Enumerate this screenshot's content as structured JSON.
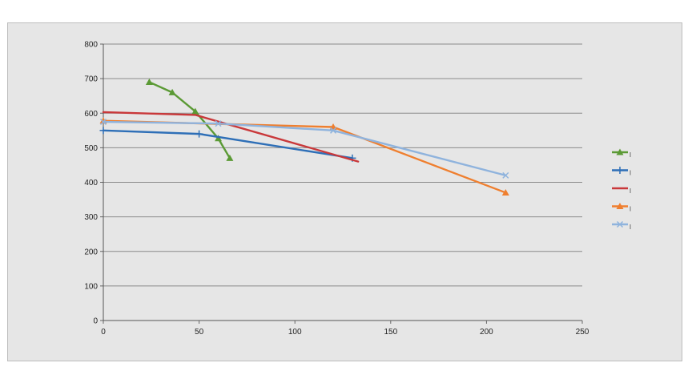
{
  "chart_data": {
    "type": "line",
    "xlim": [
      0,
      250
    ],
    "ylim": [
      0,
      800
    ],
    "x_ticks": [
      "0",
      "50",
      "100",
      "150",
      "200",
      "250"
    ],
    "y_ticks": [
      "0",
      "100",
      "200",
      "300",
      "400",
      "500",
      "600",
      "700",
      "800"
    ],
    "grid": "horizontal",
    "legend_placement": "right",
    "series": [
      {
        "color": "#5b9a35",
        "marker": "triangle",
        "points": [
          [
            24,
            690
          ],
          [
            36,
            660
          ],
          [
            48,
            605
          ],
          [
            60,
            527
          ],
          [
            66,
            470
          ]
        ]
      },
      {
        "color": "#2e6fb7",
        "marker": "plus",
        "points": [
          [
            0,
            550
          ],
          [
            50,
            540
          ],
          [
            130,
            470
          ]
        ]
      },
      {
        "color": "#c9383a",
        "marker": "none",
        "points": [
          [
            0,
            603
          ],
          [
            48,
            595
          ],
          [
            133,
            460
          ]
        ]
      },
      {
        "color": "#ef7f2f",
        "marker": "triangle",
        "points": [
          [
            0,
            578
          ],
          [
            120,
            560
          ],
          [
            210,
            370
          ]
        ]
      },
      {
        "color": "#8fb3dd",
        "marker": "x",
        "points": [
          [
            0,
            575
          ],
          [
            60,
            570
          ],
          [
            120,
            550
          ],
          [
            210,
            420
          ]
        ]
      }
    ]
  }
}
